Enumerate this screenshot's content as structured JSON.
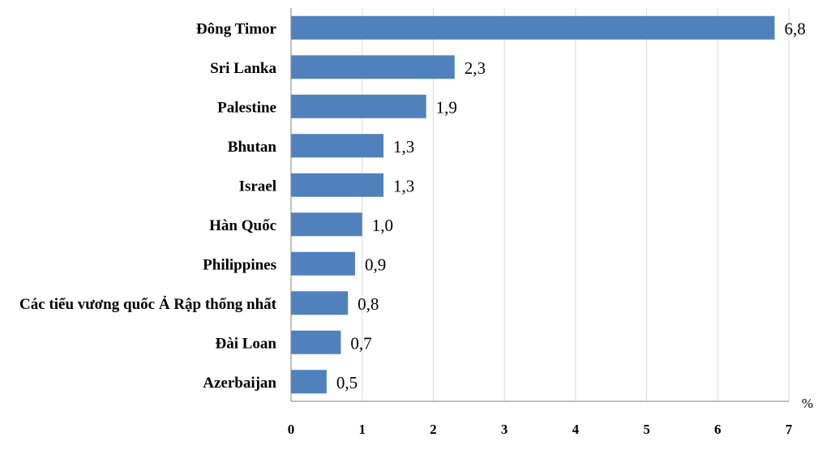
{
  "chart_data": {
    "type": "bar",
    "orientation": "horizontal",
    "categories": [
      "Đông Timor",
      "Sri Lanka",
      "Palestine",
      "Bhutan",
      "Israel",
      "Hàn Quốc",
      "Philippines",
      "Các tiểu vương quốc Ả Rập thống nhất",
      "Đài Loan",
      "Azerbaijan"
    ],
    "values": [
      6.8,
      2.3,
      1.9,
      1.3,
      1.3,
      1.0,
      0.9,
      0.8,
      0.7,
      0.5
    ],
    "value_labels": [
      "6,8",
      "2,3",
      "1,9",
      "1,3",
      "1,3",
      "1,0",
      "0,9",
      "0,8",
      "0,7",
      "0,5"
    ],
    "x_ticks": [
      "0",
      "1",
      "2",
      "3",
      "4",
      "5",
      "6",
      "7"
    ],
    "xlim": [
      0,
      7
    ],
    "x_unit": "%",
    "grid": "vertical",
    "bar_color": "#4f81bd",
    "legend": "none"
  }
}
